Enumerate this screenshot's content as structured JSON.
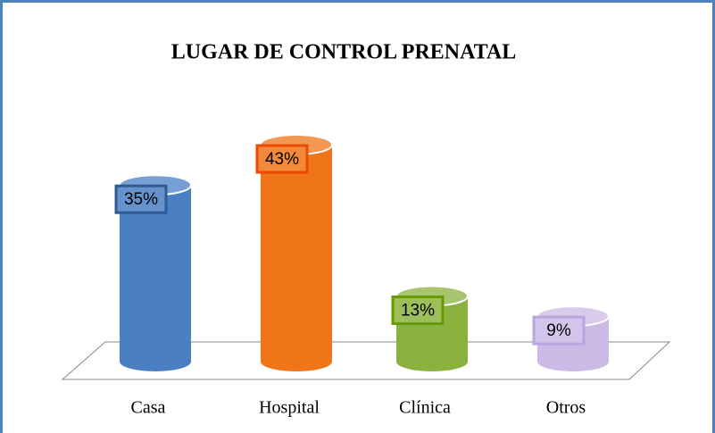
{
  "chart_data": {
    "type": "bar",
    "title": "LUGAR DE CONTROL PRENATAL",
    "categories": [
      "Casa",
      "Hospital",
      "Clínica",
      "Otros"
    ],
    "values": [
      35,
      43,
      13,
      9
    ],
    "value_labels": [
      "35%",
      "43%",
      "13%",
      "9%"
    ],
    "colors": [
      "#4a7fc4",
      "#f07418",
      "#8ab23e",
      "#cbb9e6"
    ]
  }
}
